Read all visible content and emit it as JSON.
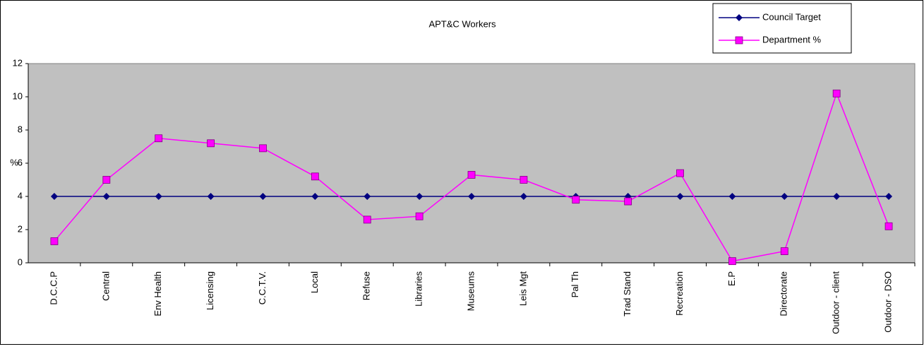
{
  "chart_data": {
    "type": "line",
    "title": "APT&C Workers",
    "ylabel": "%",
    "categories": [
      "D.C.C.P",
      "Central",
      "Env Health",
      "Licensing",
      "C.C.T.V.",
      "Local",
      "Refuse",
      "Libraries",
      "Museums",
      "Leis Mgt",
      "Pal Th",
      "Trad Stand",
      "Recreation",
      "E.P",
      "Directorate",
      "Outdoor - client",
      "Outdoor - DSO"
    ],
    "series": [
      {
        "name": "Council Target",
        "color": "#000080",
        "marker": "diamond",
        "values": [
          4,
          4,
          4,
          4,
          4,
          4,
          4,
          4,
          4,
          4,
          4,
          4,
          4,
          4,
          4,
          4,
          4
        ]
      },
      {
        "name": "Department %",
        "color": "#ff00ff",
        "marker": "square",
        "values": [
          1.3,
          5.0,
          7.5,
          7.2,
          6.9,
          5.2,
          2.6,
          2.8,
          5.3,
          5.0,
          3.8,
          3.7,
          5.4,
          0.1,
          0.7,
          10.2,
          2.2
        ]
      }
    ],
    "ylim": [
      0,
      12
    ],
    "yticks": [
      0,
      2,
      4,
      6,
      8,
      10,
      12
    ],
    "plot_background": "#c0c0c0",
    "legend": "top-right"
  }
}
